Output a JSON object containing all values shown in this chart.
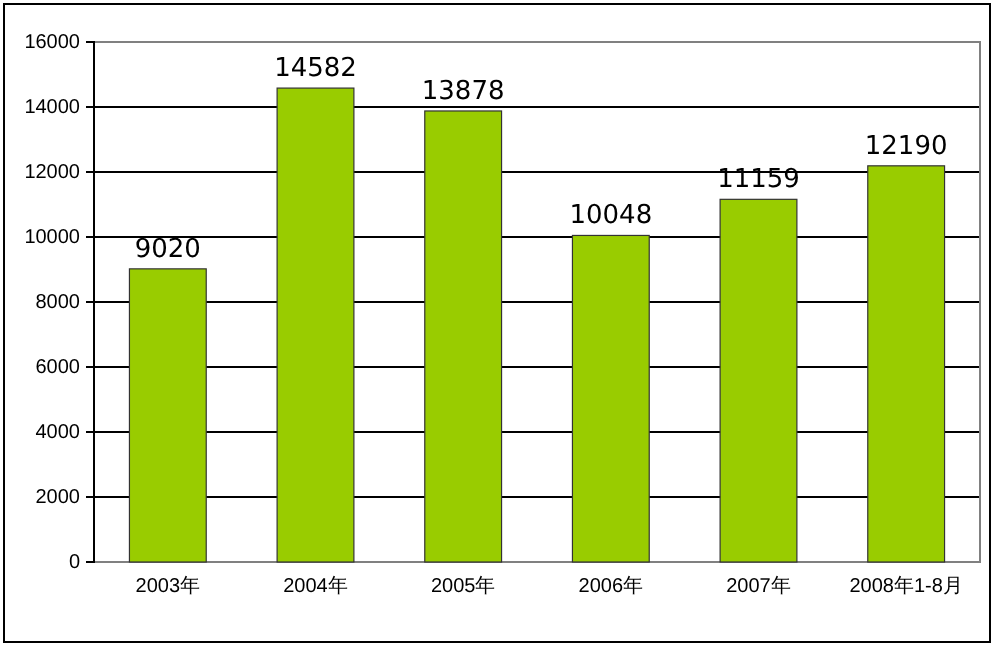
{
  "chart_data": {
    "type": "bar",
    "categories": [
      "2003年",
      "2004年",
      "2005年",
      "2006年",
      "2007年",
      "2008年1-8月"
    ],
    "values": [
      9020,
      14582,
      13878,
      10048,
      11159,
      12190
    ],
    "color": "#99cc00",
    "ylim": [
      0,
      16000
    ],
    "yticks": [
      0,
      2000,
      4000,
      6000,
      8000,
      10000,
      12000,
      14000,
      16000
    ],
    "grid": "y",
    "data_labels": true
  }
}
